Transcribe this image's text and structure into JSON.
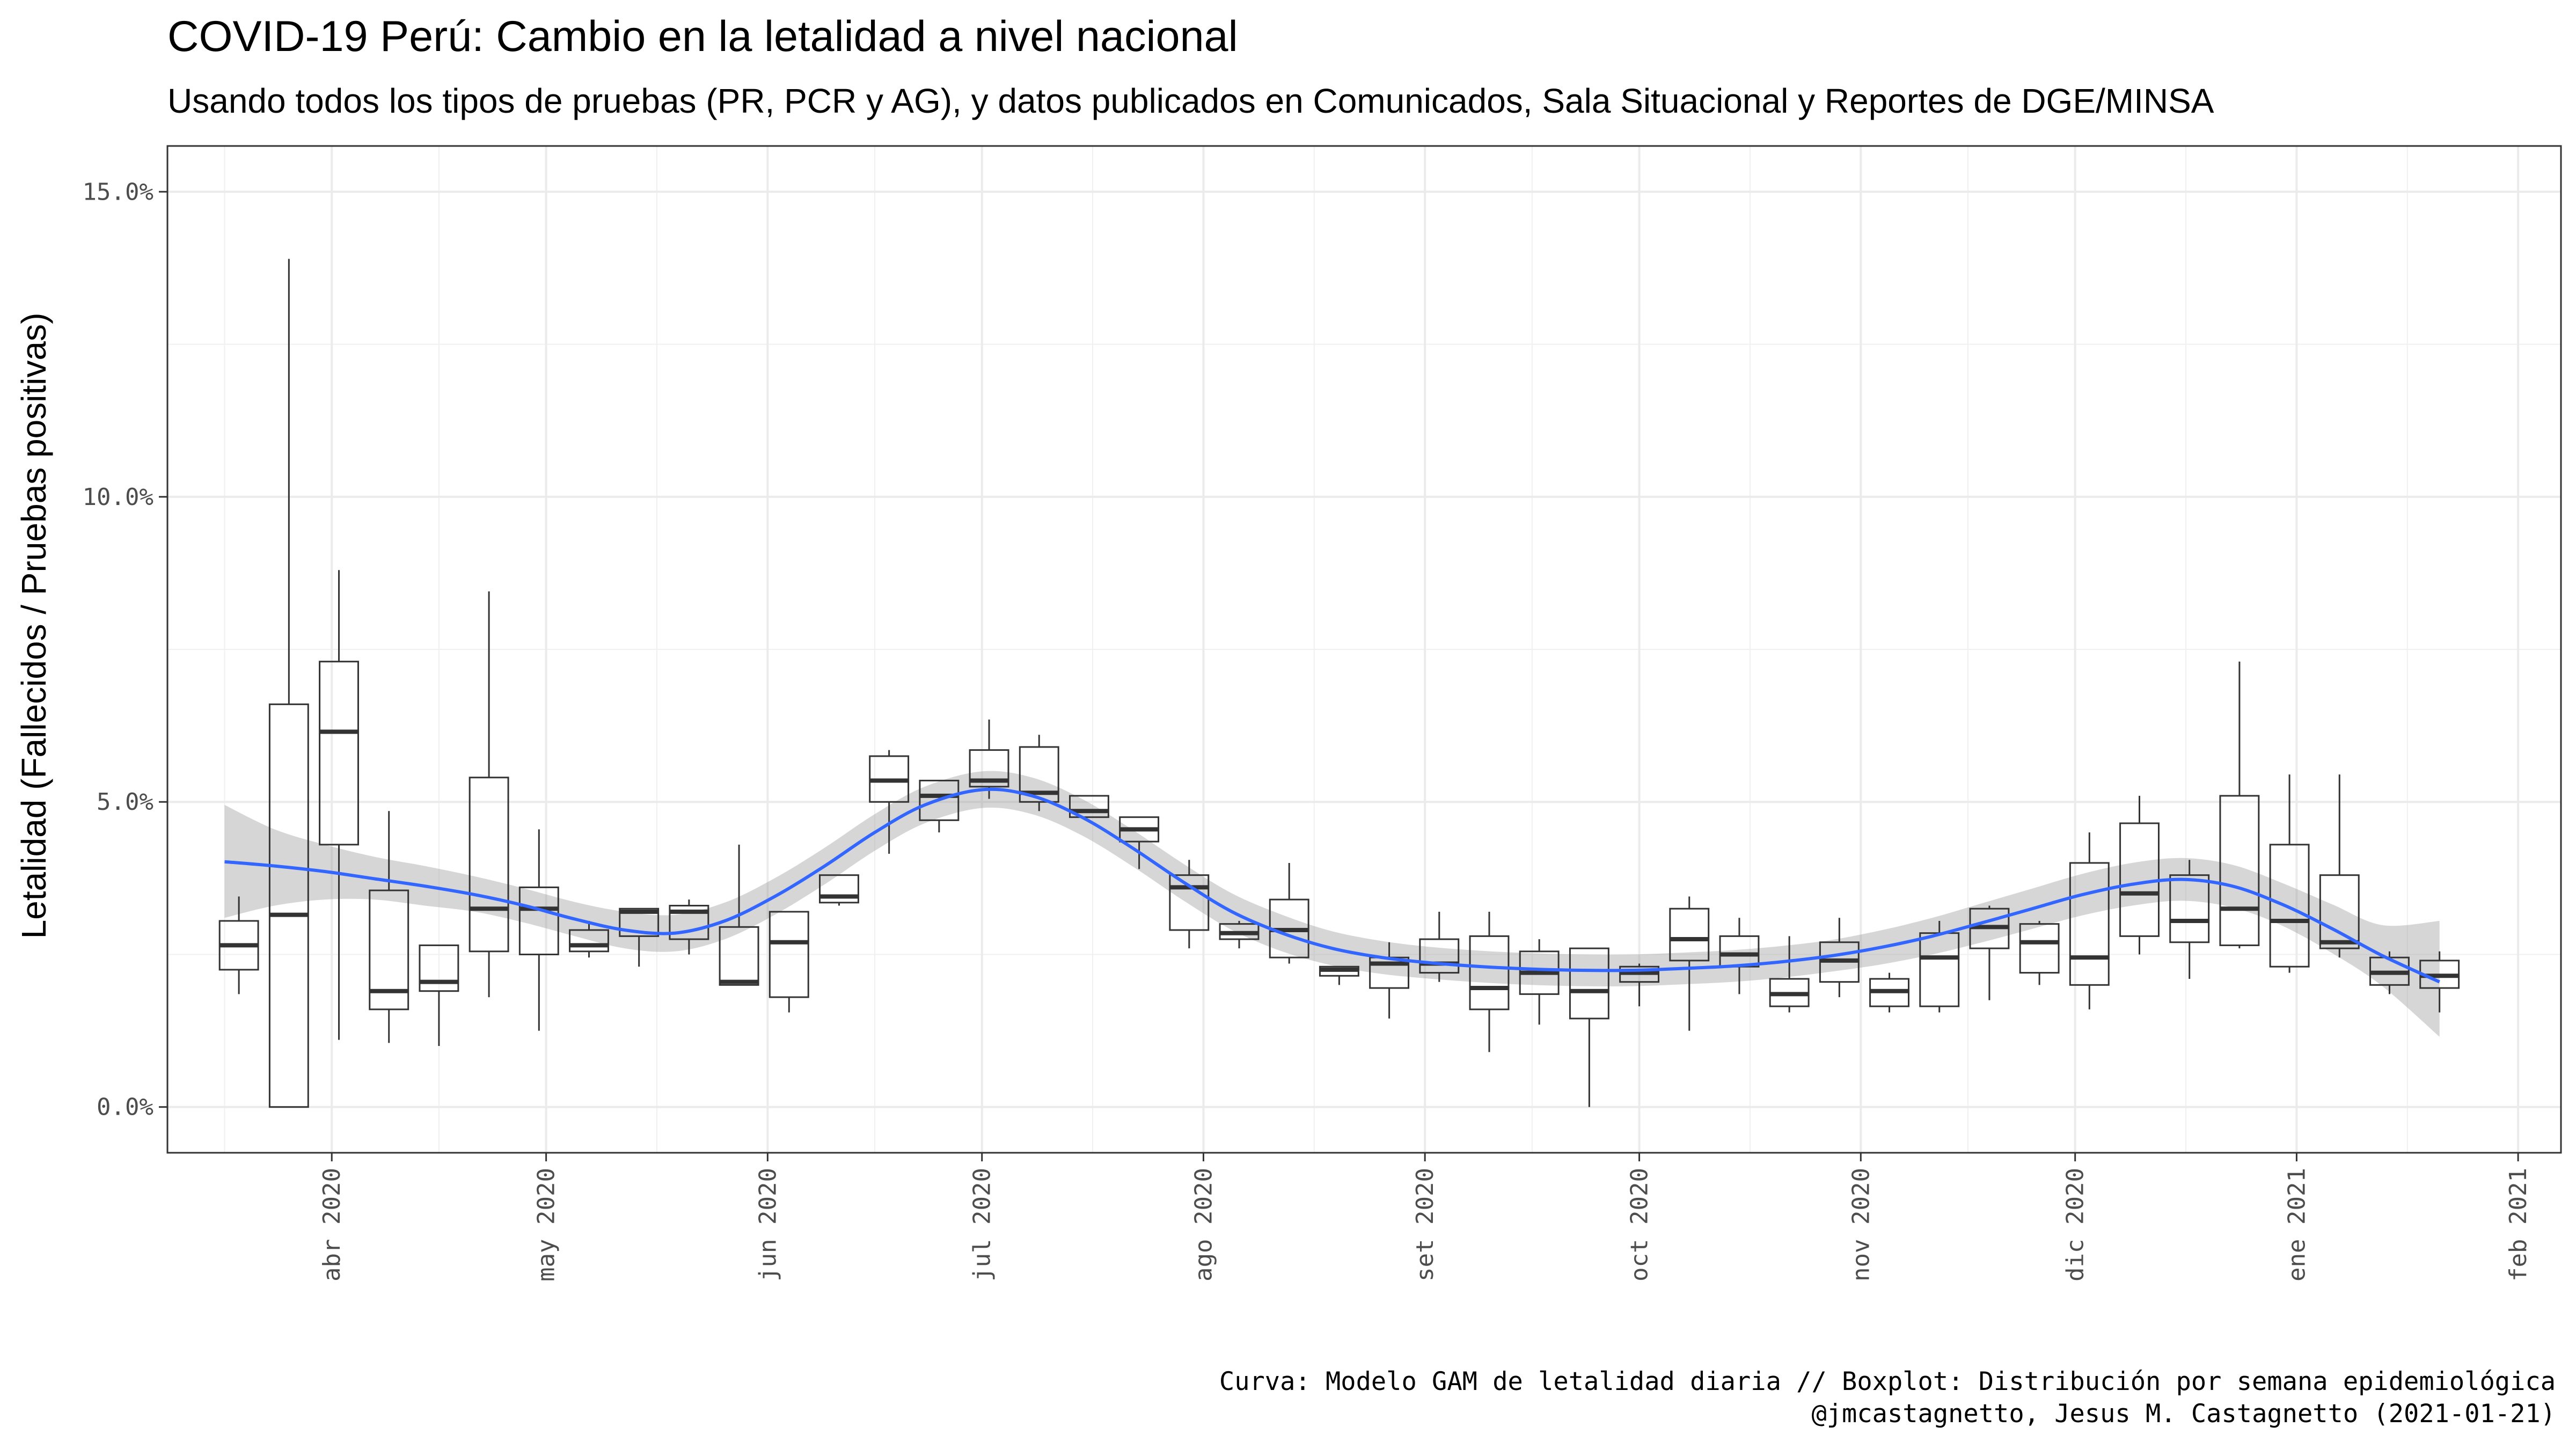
{
  "chart_data": {
    "type": "boxplot",
    "title": "COVID-19 Perú: Cambio en la letalidad a nivel nacional",
    "subtitle": "Usando todos los tipos de pruebas (PR, PCR y AG), y datos publicados en Comunicados, Sala Situacional y Reportes de DGE/MINSA",
    "xlabel": "",
    "ylabel": "Letalidad (Fallecidos / Pruebas positivas)",
    "caption_line1": "Curva: Modelo GAM de letalidad diaria // Boxplot: Distribución por semana epidemiológica",
    "caption_line2": "@jmcastagnetto, Jesus M. Castagnetto (2021-01-21)",
    "ylim": [
      -0.75,
      15.75
    ],
    "y_ticks": [
      {
        "value": 0,
        "label": "0.0%"
      },
      {
        "value": 5,
        "label": "5.0%"
      },
      {
        "value": 10,
        "label": "10.0%"
      },
      {
        "value": 15,
        "label": "15.0%"
      }
    ],
    "xlim": [
      "2020-03-09",
      "2021-02-07"
    ],
    "x_ticks": [
      {
        "date": "2020-04-01",
        "label": "abr 2020"
      },
      {
        "date": "2020-05-01",
        "label": "may 2020"
      },
      {
        "date": "2020-06-01",
        "label": "jun 2020"
      },
      {
        "date": "2020-07-01",
        "label": "jul 2020"
      },
      {
        "date": "2020-08-01",
        "label": "ago 2020"
      },
      {
        "date": "2020-09-01",
        "label": "set 2020"
      },
      {
        "date": "2020-10-01",
        "label": "oct 2020"
      },
      {
        "date": "2020-11-01",
        "label": "nov 2020"
      },
      {
        "date": "2020-12-01",
        "label": "dic 2020"
      },
      {
        "date": "2021-01-01",
        "label": "ene 2021"
      },
      {
        "date": "2021-02-01",
        "label": "feb 2021"
      }
    ],
    "grid": true,
    "boxes": [
      {
        "date": "2020-03-19",
        "min": 1.85,
        "q1": 2.25,
        "median": 2.65,
        "q3": 3.05,
        "max": 3.45
      },
      {
        "date": "2020-03-26",
        "min": 0.0,
        "q1": 0.0,
        "median": 3.15,
        "q3": 6.6,
        "max": 13.9
      },
      {
        "date": "2020-04-02",
        "min": 1.1,
        "q1": 4.3,
        "median": 6.15,
        "q3": 7.3,
        "max": 8.8
      },
      {
        "date": "2020-04-09",
        "min": 1.05,
        "q1": 1.6,
        "median": 1.9,
        "q3": 3.55,
        "max": 4.85
      },
      {
        "date": "2020-04-16",
        "min": 1.0,
        "q1": 1.9,
        "median": 2.05,
        "q3": 2.65,
        "max": 2.65
      },
      {
        "date": "2020-04-23",
        "min": 1.8,
        "q1": 2.55,
        "median": 3.25,
        "q3": 5.4,
        "max": 8.45
      },
      {
        "date": "2020-04-30",
        "min": 1.25,
        "q1": 2.5,
        "median": 3.25,
        "q3": 3.6,
        "max": 4.55
      },
      {
        "date": "2020-05-07",
        "min": 2.45,
        "q1": 2.55,
        "median": 2.65,
        "q3": 2.9,
        "max": 3.05
      },
      {
        "date": "2020-05-14",
        "min": 2.3,
        "q1": 2.8,
        "median": 3.2,
        "q3": 3.25,
        "max": 3.25
      },
      {
        "date": "2020-05-21",
        "min": 2.5,
        "q1": 2.75,
        "median": 3.2,
        "q3": 3.3,
        "max": 3.4
      },
      {
        "date": "2020-05-28",
        "min": 2.0,
        "q1": 2.0,
        "median": 2.05,
        "q3": 2.95,
        "max": 4.3
      },
      {
        "date": "2020-06-04",
        "min": 1.55,
        "q1": 1.8,
        "median": 2.7,
        "q3": 3.2,
        "max": 3.2
      },
      {
        "date": "2020-06-11",
        "min": 3.3,
        "q1": 3.35,
        "median": 3.45,
        "q3": 3.8,
        "max": 3.8
      },
      {
        "date": "2020-06-18",
        "min": 4.15,
        "q1": 5.0,
        "median": 5.35,
        "q3": 5.75,
        "max": 5.85
      },
      {
        "date": "2020-06-25",
        "min": 4.5,
        "q1": 4.7,
        "median": 5.1,
        "q3": 5.35,
        "max": 5.35
      },
      {
        "date": "2020-07-02",
        "min": 5.05,
        "q1": 5.25,
        "median": 5.35,
        "q3": 5.85,
        "max": 6.35
      },
      {
        "date": "2020-07-09",
        "min": 4.85,
        "q1": 5.0,
        "median": 5.15,
        "q3": 5.9,
        "max": 6.1
      },
      {
        "date": "2020-07-16",
        "min": 4.75,
        "q1": 4.75,
        "median": 4.85,
        "q3": 5.1,
        "max": 5.1
      },
      {
        "date": "2020-07-23",
        "min": 3.9,
        "q1": 4.35,
        "median": 4.55,
        "q3": 4.75,
        "max": 4.75
      },
      {
        "date": "2020-07-30",
        "min": 2.6,
        "q1": 2.9,
        "median": 3.6,
        "q3": 3.8,
        "max": 4.05
      },
      {
        "date": "2020-08-06",
        "min": 2.6,
        "q1": 2.75,
        "median": 2.85,
        "q3": 3.0,
        "max": 3.05
      },
      {
        "date": "2020-08-13",
        "min": 2.35,
        "q1": 2.45,
        "median": 2.9,
        "q3": 3.4,
        "max": 4.0
      },
      {
        "date": "2020-08-20",
        "min": 2.0,
        "q1": 2.15,
        "median": 2.25,
        "q3": 2.3,
        "max": 2.3
      },
      {
        "date": "2020-08-27",
        "min": 1.45,
        "q1": 1.95,
        "median": 2.35,
        "q3": 2.45,
        "max": 2.7
      },
      {
        "date": "2020-09-03",
        "min": 2.05,
        "q1": 2.2,
        "median": 2.35,
        "q3": 2.75,
        "max": 3.2
      },
      {
        "date": "2020-09-10",
        "min": 0.9,
        "q1": 1.6,
        "median": 1.95,
        "q3": 2.8,
        "max": 3.2
      },
      {
        "date": "2020-09-17",
        "min": 1.35,
        "q1": 1.85,
        "median": 2.2,
        "q3": 2.55,
        "max": 2.75
      },
      {
        "date": "2020-09-24",
        "min": 0.0,
        "q1": 1.45,
        "median": 1.9,
        "q3": 2.6,
        "max": 2.6
      },
      {
        "date": "2020-10-01",
        "min": 1.65,
        "q1": 2.05,
        "median": 2.2,
        "q3": 2.3,
        "max": 2.35
      },
      {
        "date": "2020-10-08",
        "min": 1.25,
        "q1": 2.4,
        "median": 2.75,
        "q3": 3.25,
        "max": 3.45
      },
      {
        "date": "2020-10-15",
        "min": 1.85,
        "q1": 2.3,
        "median": 2.5,
        "q3": 2.8,
        "max": 3.1
      },
      {
        "date": "2020-10-22",
        "min": 1.55,
        "q1": 1.65,
        "median": 1.85,
        "q3": 2.1,
        "max": 2.8
      },
      {
        "date": "2020-10-29",
        "min": 1.8,
        "q1": 2.05,
        "median": 2.4,
        "q3": 2.7,
        "max": 3.1
      },
      {
        "date": "2020-11-05",
        "min": 1.55,
        "q1": 1.65,
        "median": 1.9,
        "q3": 2.1,
        "max": 2.2
      },
      {
        "date": "2020-11-12",
        "min": 1.55,
        "q1": 1.65,
        "median": 2.45,
        "q3": 2.85,
        "max": 3.05
      },
      {
        "date": "2020-11-19",
        "min": 1.75,
        "q1": 2.6,
        "median": 2.95,
        "q3": 3.25,
        "max": 3.3
      },
      {
        "date": "2020-11-26",
        "min": 2.0,
        "q1": 2.2,
        "median": 2.7,
        "q3": 3.0,
        "max": 3.05
      },
      {
        "date": "2020-12-03",
        "min": 1.6,
        "q1": 2.0,
        "median": 2.45,
        "q3": 4.0,
        "max": 4.5
      },
      {
        "date": "2020-12-10",
        "min": 2.5,
        "q1": 2.8,
        "median": 3.5,
        "q3": 4.65,
        "max": 5.1
      },
      {
        "date": "2020-12-17",
        "min": 2.1,
        "q1": 2.7,
        "median": 3.05,
        "q3": 3.8,
        "max": 4.05
      },
      {
        "date": "2020-12-24",
        "min": 2.6,
        "q1": 2.65,
        "median": 3.25,
        "q3": 5.1,
        "max": 7.3
      },
      {
        "date": "2020-12-31",
        "min": 2.2,
        "q1": 2.3,
        "median": 3.05,
        "q3": 4.3,
        "max": 5.45
      },
      {
        "date": "2021-01-07",
        "min": 2.45,
        "q1": 2.6,
        "median": 2.7,
        "q3": 3.8,
        "max": 5.45
      },
      {
        "date": "2021-01-14",
        "min": 1.85,
        "q1": 2.0,
        "median": 2.2,
        "q3": 2.45,
        "max": 2.55
      },
      {
        "date": "2021-01-21",
        "min": 1.55,
        "q1": 1.95,
        "median": 2.15,
        "q3": 2.4,
        "max": 2.55
      }
    ],
    "gam_curve": {
      "color": "#3366ff",
      "band_color": "#999999",
      "points": [
        {
          "date": "2020-03-17",
          "fit": 4.02,
          "lower": 3.1,
          "upper": 4.95
        },
        {
          "date": "2020-03-24",
          "fit": 3.95,
          "lower": 3.3,
          "upper": 4.55
        },
        {
          "date": "2020-03-31",
          "fit": 3.86,
          "lower": 3.4,
          "upper": 4.3
        },
        {
          "date": "2020-04-07",
          "fit": 3.74,
          "lower": 3.4,
          "upper": 4.1
        },
        {
          "date": "2020-04-14",
          "fit": 3.62,
          "lower": 3.3,
          "upper": 3.95
        },
        {
          "date": "2020-04-21",
          "fit": 3.48,
          "lower": 3.2,
          "upper": 3.78
        },
        {
          "date": "2020-04-28",
          "fit": 3.3,
          "lower": 3.02,
          "upper": 3.58
        },
        {
          "date": "2020-05-05",
          "fit": 3.08,
          "lower": 2.8,
          "upper": 3.36
        },
        {
          "date": "2020-05-12",
          "fit": 2.9,
          "lower": 2.6,
          "upper": 3.2
        },
        {
          "date": "2020-05-19",
          "fit": 2.85,
          "lower": 2.55,
          "upper": 3.15
        },
        {
          "date": "2020-05-26",
          "fit": 3.05,
          "lower": 2.75,
          "upper": 3.35
        },
        {
          "date": "2020-06-02",
          "fit": 3.45,
          "lower": 3.15,
          "upper": 3.75
        },
        {
          "date": "2020-06-09",
          "fit": 3.95,
          "lower": 3.65,
          "upper": 4.25
        },
        {
          "date": "2020-06-16",
          "fit": 4.5,
          "lower": 4.2,
          "upper": 4.8
        },
        {
          "date": "2020-06-23",
          "fit": 4.95,
          "lower": 4.65,
          "upper": 5.25
        },
        {
          "date": "2020-07-01",
          "fit": 5.2,
          "lower": 4.9,
          "upper": 5.5
        },
        {
          "date": "2020-07-08",
          "fit": 5.1,
          "lower": 4.8,
          "upper": 5.4
        },
        {
          "date": "2020-07-15",
          "fit": 4.75,
          "lower": 4.45,
          "upper": 5.05
        },
        {
          "date": "2020-07-22",
          "fit": 4.25,
          "lower": 3.95,
          "upper": 4.55
        },
        {
          "date": "2020-07-29",
          "fit": 3.7,
          "lower": 3.4,
          "upper": 4.0
        },
        {
          "date": "2020-08-05",
          "fit": 3.2,
          "lower": 2.9,
          "upper": 3.5
        },
        {
          "date": "2020-08-12",
          "fit": 2.85,
          "lower": 2.55,
          "upper": 3.15
        },
        {
          "date": "2020-08-19",
          "fit": 2.6,
          "lower": 2.32,
          "upper": 2.88
        },
        {
          "date": "2020-08-26",
          "fit": 2.45,
          "lower": 2.18,
          "upper": 2.72
        },
        {
          "date": "2020-09-02",
          "fit": 2.36,
          "lower": 2.1,
          "upper": 2.62
        },
        {
          "date": "2020-09-09",
          "fit": 2.3,
          "lower": 2.04,
          "upper": 2.56
        },
        {
          "date": "2020-09-16",
          "fit": 2.26,
          "lower": 2.0,
          "upper": 2.52
        },
        {
          "date": "2020-09-23",
          "fit": 2.24,
          "lower": 1.98,
          "upper": 2.5
        },
        {
          "date": "2020-09-30",
          "fit": 2.24,
          "lower": 1.98,
          "upper": 2.5
        },
        {
          "date": "2020-10-07",
          "fit": 2.27,
          "lower": 2.01,
          "upper": 2.53
        },
        {
          "date": "2020-10-14",
          "fit": 2.31,
          "lower": 2.05,
          "upper": 2.57
        },
        {
          "date": "2020-10-21",
          "fit": 2.38,
          "lower": 2.12,
          "upper": 2.64
        },
        {
          "date": "2020-10-28",
          "fit": 2.48,
          "lower": 2.22,
          "upper": 2.74
        },
        {
          "date": "2020-11-04",
          "fit": 2.62,
          "lower": 2.34,
          "upper": 2.9
        },
        {
          "date": "2020-11-11",
          "fit": 2.8,
          "lower": 2.5,
          "upper": 3.1
        },
        {
          "date": "2020-11-18",
          "fit": 3.02,
          "lower": 2.7,
          "upper": 3.34
        },
        {
          "date": "2020-11-25",
          "fit": 3.25,
          "lower": 2.92,
          "upper": 3.58
        },
        {
          "date": "2020-12-02",
          "fit": 3.48,
          "lower": 3.14,
          "upper": 3.82
        },
        {
          "date": "2020-12-09",
          "fit": 3.65,
          "lower": 3.3,
          "upper": 4.0
        },
        {
          "date": "2020-12-16",
          "fit": 3.73,
          "lower": 3.38,
          "upper": 4.08
        },
        {
          "date": "2020-12-23",
          "fit": 3.62,
          "lower": 3.27,
          "upper": 3.97
        },
        {
          "date": "2020-12-30",
          "fit": 3.32,
          "lower": 2.97,
          "upper": 3.67
        },
        {
          "date": "2021-01-06",
          "fit": 2.92,
          "lower": 2.52,
          "upper": 3.32
        },
        {
          "date": "2021-01-13",
          "fit": 2.48,
          "lower": 1.98,
          "upper": 2.98
        },
        {
          "date": "2021-01-21",
          "fit": 2.05,
          "lower": 1.15,
          "upper": 3.05
        }
      ]
    }
  }
}
